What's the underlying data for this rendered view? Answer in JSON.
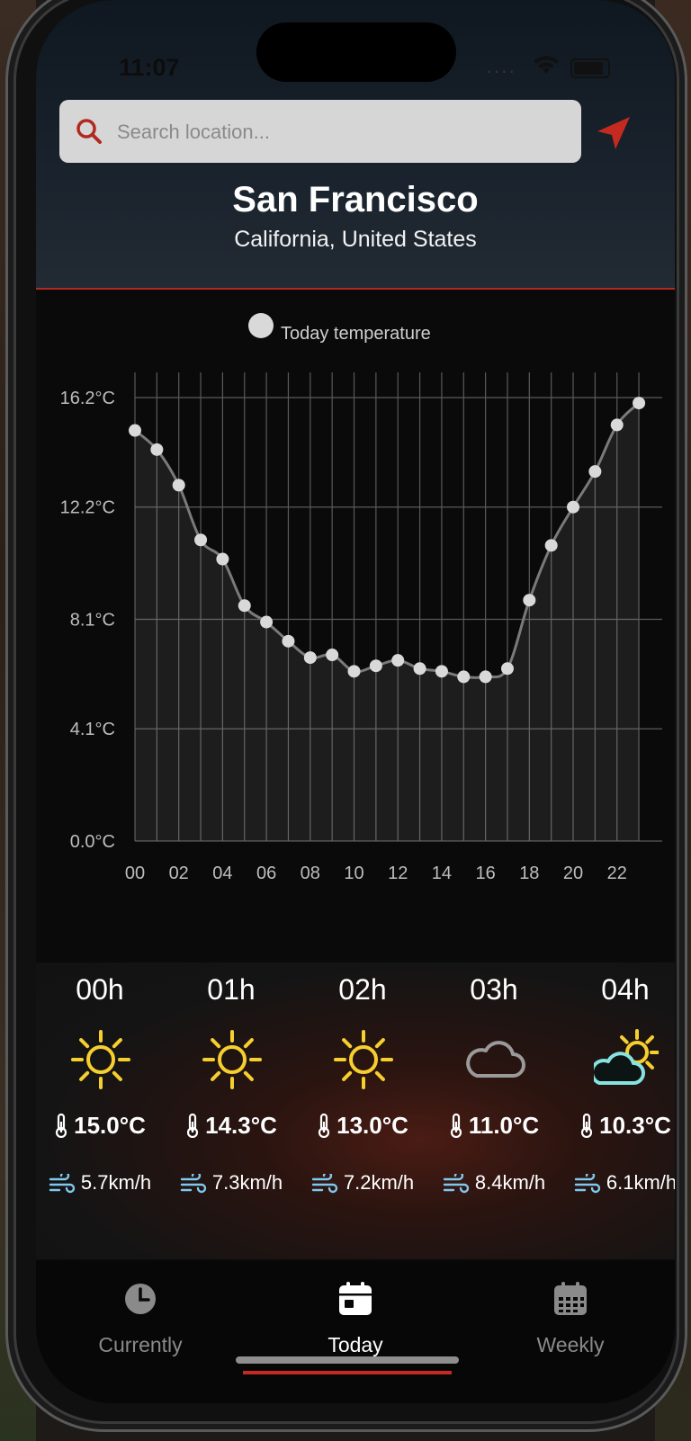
{
  "status_bar": {
    "time": "11:07"
  },
  "search": {
    "placeholder": "Search location..."
  },
  "location": {
    "city": "San Francisco",
    "region": "California, United States"
  },
  "colors": {
    "accent": "#c52a20",
    "sun": "#f6cf2f",
    "partly_cloud": "#86e3e0"
  },
  "chart_data": {
    "type": "line",
    "title": "",
    "legend": "Today temperature",
    "xlabel": "",
    "ylabel": "",
    "x_tick_labels": [
      "00",
      "02",
      "04",
      "06",
      "08",
      "10",
      "12",
      "14",
      "16",
      "18",
      "20",
      "22"
    ],
    "y_tick_labels": [
      "16.2°C",
      "12.2°C",
      "8.1°C",
      "4.1°C",
      "0.0°C"
    ],
    "ylim": [
      0.0,
      16.2
    ],
    "grid": true,
    "series": [
      {
        "name": "Today temperature",
        "x": [
          0,
          1,
          2,
          3,
          4,
          5,
          6,
          7,
          8,
          9,
          10,
          11,
          12,
          13,
          14,
          15,
          16,
          17,
          18,
          19,
          20,
          21,
          22,
          23
        ],
        "values": [
          15.0,
          14.3,
          13.0,
          11.0,
          10.3,
          8.6,
          8.0,
          7.3,
          6.7,
          6.8,
          6.2,
          6.4,
          6.6,
          6.3,
          6.2,
          6.0,
          6.0,
          6.3,
          8.8,
          10.8,
          12.2,
          13.5,
          15.2,
          16.0
        ]
      }
    ]
  },
  "hourly": [
    {
      "hour": "00h",
      "icon": "sun-icon",
      "temp": "15.0°C",
      "wind": "5.7km/h"
    },
    {
      "hour": "01h",
      "icon": "sun-icon",
      "temp": "14.3°C",
      "wind": "7.3km/h"
    },
    {
      "hour": "02h",
      "icon": "sun-icon",
      "temp": "13.0°C",
      "wind": "7.2km/h"
    },
    {
      "hour": "03h",
      "icon": "cloud-icon",
      "temp": "11.0°C",
      "wind": "8.4km/h"
    },
    {
      "hour": "04h",
      "icon": "partly-cloudy-icon",
      "temp": "10.3°C",
      "wind": "6.1km/h"
    }
  ],
  "tabs": [
    {
      "label": "Currently",
      "icon": "clock-icon",
      "active": false
    },
    {
      "label": "Today",
      "icon": "calendar-day-icon",
      "active": true
    },
    {
      "label": "Weekly",
      "icon": "calendar-week-icon",
      "active": false
    }
  ]
}
